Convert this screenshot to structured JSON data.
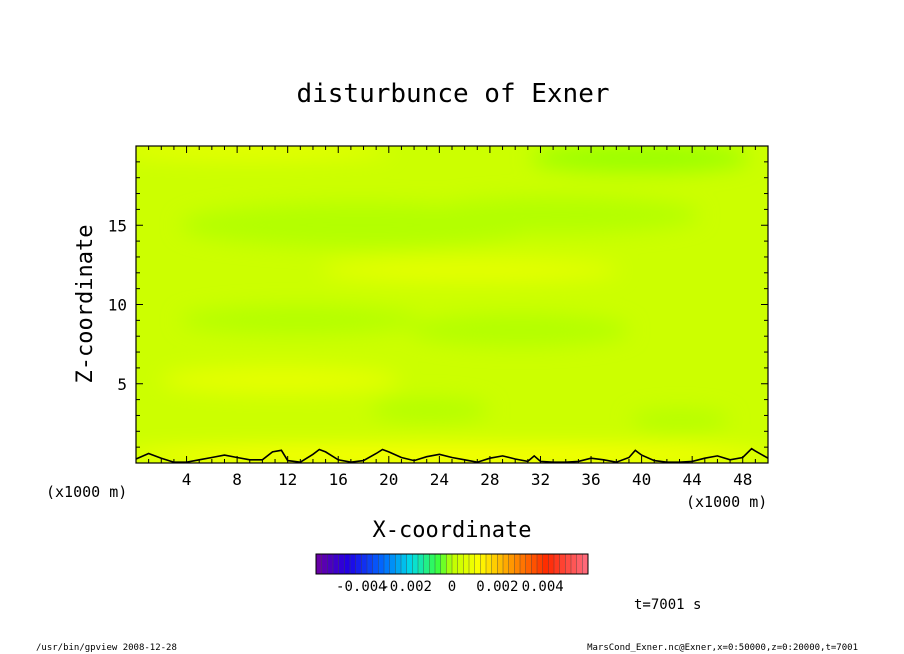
{
  "chart_data": {
    "type": "heatmap",
    "title": "disturbunce of Exner",
    "xlabel": "X-coordinate",
    "ylabel": "Z-coordinate",
    "x_unit_left": "(x1000 m)",
    "x_unit_right": "(x1000 m)",
    "xlim": [
      0,
      50
    ],
    "ylim": [
      0,
      20
    ],
    "x_ticks": [
      "4",
      "8",
      "12",
      "16",
      "20",
      "24",
      "28",
      "32",
      "36",
      "40",
      "44",
      "48"
    ],
    "y_ticks": [
      "5",
      "10",
      "15"
    ],
    "colorbar": {
      "range": [
        -0.006,
        0.006
      ],
      "tick_labels": [
        "-0.004",
        "-0.002",
        "0",
        "0.002",
        "0.004"
      ],
      "tick_values": [
        -0.004,
        -0.002,
        0,
        0.002,
        0.004
      ],
      "colormap": "rainbow"
    },
    "field_value_approx": 0.0002,
    "contour_line": {
      "description_level": 0,
      "x": [
        0,
        1,
        2,
        3,
        4,
        5,
        6,
        7,
        8,
        9,
        10,
        10.8,
        11.5,
        12,
        13,
        14,
        14.5,
        15,
        16,
        17,
        18,
        19,
        19.5,
        20,
        21,
        22,
        23,
        24,
        25,
        26,
        27,
        28,
        29,
        30,
        31,
        31.5,
        32,
        33,
        34,
        35,
        36,
        37,
        38,
        39,
        39.5,
        40,
        41,
        42,
        43,
        44,
        45,
        46,
        47,
        48,
        48.7,
        49,
        50
      ],
      "z": [
        0.25,
        0.6,
        0.3,
        0.05,
        0.05,
        0.2,
        0.35,
        0.5,
        0.35,
        0.2,
        0.2,
        0.7,
        0.8,
        0.15,
        0.05,
        0.55,
        0.85,
        0.7,
        0.2,
        0.05,
        0.15,
        0.6,
        0.85,
        0.7,
        0.35,
        0.15,
        0.4,
        0.55,
        0.35,
        0.2,
        0.05,
        0.3,
        0.45,
        0.25,
        0.1,
        0.45,
        0.1,
        0.05,
        0.05,
        0.1,
        0.3,
        0.2,
        0.05,
        0.35,
        0.8,
        0.5,
        0.15,
        0.05,
        0.05,
        0.1,
        0.3,
        0.45,
        0.2,
        0.35,
        0.9,
        0.75,
        0.3
      ]
    }
  },
  "time_label": "t=7001 s",
  "footer_left": "/usr/bin/gpview   2008-12-28",
  "footer_right": "MarsCond_Exner.nc@Exner,x=0:50000,z=0:20000,t=7001",
  "colors": {
    "field_main": "#ccff00",
    "field_low": "#b3ff00",
    "field_lower": "#99ff00",
    "field_high": "#e6ff00",
    "field_higher": "#ffff00"
  }
}
